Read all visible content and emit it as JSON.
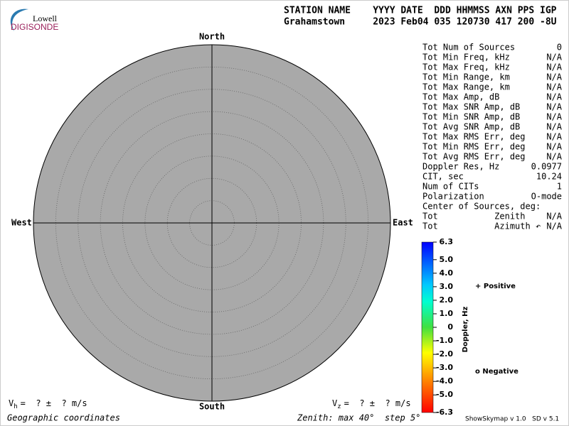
{
  "chart_data": {
    "type": "skymap",
    "logo": {
      "top": "Lowell",
      "bottom": "DIGISONDE"
    },
    "header": {
      "columns": "STATION NAME    YYYY DATE  DDD HHMMSS AXN PPS IGP",
      "values": "Grahamstown     2023 Feb04 035 120730 417 200 -8U"
    },
    "directions": {
      "north": "North",
      "south": "South",
      "west": "West",
      "east": "East"
    },
    "rlim": [
      0,
      40
    ],
    "rticks": [
      5,
      10,
      15,
      20,
      25,
      30,
      35
    ],
    "stats": [
      {
        "label": "Tot Num of Sources",
        "value": "0",
        "muted": true
      },
      {
        "label": "Tot Min Freq, kHz",
        "value": "N/A",
        "muted": true
      },
      {
        "label": "Tot Max Freq, kHz",
        "value": "N/A",
        "muted": true
      },
      {
        "label": "Tot Min Range, km",
        "value": "N/A",
        "muted": true
      },
      {
        "label": "Tot Max Range, km",
        "value": "N/A",
        "muted": true
      },
      {
        "label": "Tot Max Amp, dB",
        "value": "N/A",
        "muted": true
      },
      {
        "label": "Tot Max SNR Amp, dB",
        "value": "N/A",
        "muted": true
      },
      {
        "label": "Tot Min SNR Amp, dB",
        "value": "N/A",
        "muted": true
      },
      {
        "label": "Tot Avg SNR Amp, dB",
        "value": "N/A",
        "muted": true
      },
      {
        "label": "Tot Max RMS Err, deg",
        "value": "N/A",
        "muted": true
      },
      {
        "label": "Tot Min RMS Err, deg",
        "value": "N/A",
        "muted": true
      },
      {
        "label": "Tot Avg RMS Err, deg",
        "value": "N/A",
        "muted": true
      },
      {
        "label": "Doppler Res, Hz",
        "value": "0.0977",
        "muted": false
      },
      {
        "label": "CIT, sec",
        "value": "10.24",
        "muted": false
      },
      {
        "label": "Num of CITs",
        "value": "1",
        "muted": false
      },
      {
        "label": "Polarization",
        "value": "O-mode",
        "muted": false
      },
      {
        "label": "Center of Sources, deg:",
        "value": "",
        "muted": false
      },
      {
        "label": "Tot           Zenith",
        "value": "N/A",
        "muted": true
      },
      {
        "label": "Tot           Azimuth ↶",
        "value": "N/A",
        "muted": true
      }
    ],
    "colorbar": {
      "label": "Doppler, Hz",
      "lim": [
        -6.3,
        6.3
      ],
      "ticks": [
        6.3,
        {
          "value": 5,
          "label": "5.0"
        },
        {
          "value": 4,
          "label": "4.0"
        },
        {
          "value": 3,
          "label": "3.0"
        },
        {
          "value": 2,
          "label": "2.0"
        },
        {
          "value": 1,
          "label": "1.0"
        },
        0,
        {
          "value": -1,
          "label": "-1.0"
        },
        {
          "value": -2,
          "label": "-2.0"
        },
        {
          "value": -3,
          "label": "-3.0"
        },
        {
          "value": -4,
          "label": "-4.0"
        },
        {
          "value": -5,
          "label": "-5.0"
        },
        -6.3
      ]
    },
    "legend": [
      {
        "name": "+ Positive",
        "color": "#0000c0"
      },
      {
        "name": "o Negative",
        "color": "#d00000"
      }
    ],
    "vh": {
      "symbol": "V",
      "subscript": "h",
      "text": "=  ? ±  ? m/s"
    },
    "vz": {
      "symbol": "V",
      "subscript": "z",
      "text": "=  ? ±  ? m/s"
    },
    "coordinates": "Geographic coordinates",
    "zenith_note": "Zenith: max 40°  step 5°",
    "version": "ShowSkymap v 1.0   SD v 5.1"
  }
}
